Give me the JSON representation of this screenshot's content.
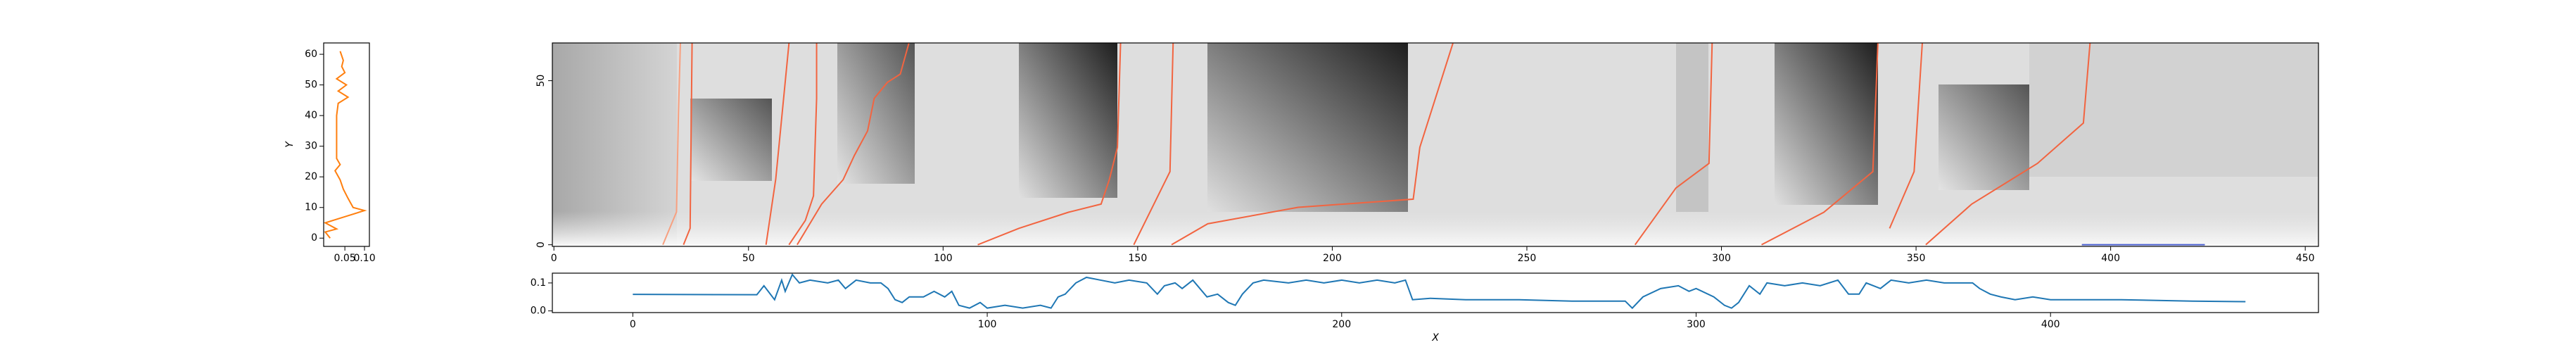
{
  "chart_data": [
    {
      "type": "line",
      "value_axis": "x",
      "ylabel": "Y",
      "xlim": [
        -0.004,
        0.1125
      ],
      "ylim": [
        -2.7,
        63.7
      ],
      "xticks": [
        0.05,
        {
          "value": 0.1,
          "label": "0.10"
        }
      ],
      "yticks": [
        0,
        10,
        20,
        30,
        40,
        50,
        60
      ],
      "series": [
        {
          "color": "#ff7f0e",
          "x": [
            0.0125,
            0,
            0.029,
            0,
            0.05,
            0.1,
            0.071,
            0.058,
            0.046,
            0.038,
            0.025,
            0.038,
            0.029,
            0.029,
            0.029,
            0.029,
            0.033,
            0.058,
            0.033,
            0.054,
            0.029,
            0.05,
            0.042,
            0.046,
            0.038
          ],
          "y": [
            0,
            2,
            3,
            5,
            7,
            9,
            10,
            13,
            16,
            19,
            22,
            24,
            26,
            30,
            35,
            40,
            44,
            46,
            48,
            50,
            52,
            54,
            56,
            58,
            61
          ]
        }
      ]
    },
    {
      "type": "line",
      "value_axis": "y",
      "xlim": [
        -0.4,
        453.4
      ],
      "ylim": [
        -0.5,
        61.5
      ],
      "xticks": [
        0,
        50,
        100,
        150,
        200,
        250,
        300,
        350,
        400,
        450
      ],
      "yticks": [
        0,
        50
      ],
      "series": [
        {
          "color": "#f26440",
          "x": [
            33.3,
            35,
            35.5
          ],
          "y": [
            0,
            5,
            61.4
          ]
        },
        {
          "color": "#f7a080",
          "x": [
            28,
            31.5,
            32,
            32.5
          ],
          "y": [
            0,
            10,
            40,
            61.4
          ]
        },
        {
          "color": "#f26440",
          "x": [
            54.5,
            57,
            60.4
          ],
          "y": [
            0,
            20,
            61.4
          ]
        },
        {
          "color": "#f26440",
          "x": [
            60.4,
            64.6,
            66.7,
            67.5,
            67.5
          ],
          "y": [
            0,
            7.4,
            14.9,
            44.6,
            61.4
          ]
        },
        {
          "color": "#f26440",
          "x": [
            62.5,
            68.8,
            74.3,
            77.2,
            80.6,
            82.3,
            85.7,
            89,
            91.2
          ],
          "y": [
            0,
            12.4,
            19.8,
            27.2,
            34.7,
            44.6,
            49.5,
            52,
            61.4
          ]
        },
        {
          "color": "#f26440",
          "x": [
            108.9,
            119.5,
            132.2,
            140.6,
            142.7,
            144.8,
            145.6
          ],
          "y": [
            0,
            5,
            9.9,
            12.4,
            19.8,
            29.7,
            61.4
          ]
        },
        {
          "color": "#f26440",
          "x": [
            149,
            158.3,
            159.1
          ],
          "y": [
            0,
            22.3,
            61.4
          ]
        },
        {
          "color": "#f26440",
          "x": [
            158.7,
            168,
            191.2,
            220.8,
            222.5,
            231
          ],
          "y": [
            0,
            6.4,
            11.4,
            13.9,
            29.7,
            61.4
          ]
        },
        {
          "color": "#f26440",
          "x": [
            277.8,
            288.3,
            296.8,
            297.6
          ],
          "y": [
            0,
            17.3,
            24.8,
            61.4
          ]
        },
        {
          "color": "#f26440",
          "x": [
            310.3,
            326.3,
            338.9,
            340.2
          ],
          "y": [
            0,
            9.9,
            22.3,
            61.4
          ]
        },
        {
          "color": "#f26440",
          "x": [
            343.2,
            349.5,
            351.6
          ],
          "y": [
            5,
            22.3,
            61.4
          ]
        },
        {
          "color": "#f26440",
          "x": [
            352.5,
            364.3,
            381.2,
            393,
            394.7
          ],
          "y": [
            0,
            12.4,
            24.8,
            37.1,
            61.4
          ]
        },
        {
          "color": "#4a5fd0",
          "x": [
            392.6,
            424.2
          ],
          "y": [
            0,
            0
          ]
        }
      ]
    },
    {
      "type": "line",
      "value_axis": "y",
      "xlabel": "X",
      "xlim": [
        -22.7,
        475.6
      ],
      "ylim": [
        -0.006,
        0.135
      ],
      "xticks": [
        0,
        100,
        200,
        300,
        400
      ],
      "yticks": [
        {
          "value": 0,
          "label": "0.0"
        },
        0.1
      ],
      "series": [
        {
          "color": "#1f77b4",
          "x": [
            0,
            35,
            37,
            40,
            42,
            43,
            45,
            47,
            50,
            55,
            58,
            60,
            63,
            67,
            70,
            72,
            74,
            76,
            78,
            82,
            85,
            88,
            90,
            92,
            95,
            98,
            100,
            105,
            110,
            115,
            118,
            120,
            122,
            125,
            128,
            132,
            136,
            140,
            145,
            148,
            150,
            153,
            155,
            158,
            162,
            165,
            168,
            170,
            172,
            175,
            178,
            185,
            190,
            195,
            200,
            205,
            210,
            215,
            218,
            220,
            225,
            235,
            250,
            265,
            280,
            282,
            285,
            290,
            295,
            298,
            300,
            305,
            308,
            310,
            312,
            315,
            318,
            320,
            325,
            330,
            335,
            340,
            343,
            346,
            348,
            352,
            355,
            360,
            365,
            370,
            378,
            380,
            383,
            386,
            390,
            395,
            400,
            420,
            440,
            455
          ],
          "y": [
            0.059,
            0.058,
            0.09,
            0.04,
            0.11,
            0.07,
            0.13,
            0.1,
            0.11,
            0.1,
            0.11,
            0.08,
            0.11,
            0.1,
            0.1,
            0.08,
            0.04,
            0.03,
            0.05,
            0.05,
            0.07,
            0.05,
            0.07,
            0.02,
            0.01,
            0.03,
            0.01,
            0.02,
            0.01,
            0.02,
            0.01,
            0.05,
            0.06,
            0.1,
            0.12,
            0.11,
            0.1,
            0.11,
            0.1,
            0.06,
            0.09,
            0.1,
            0.08,
            0.11,
            0.05,
            0.06,
            0.03,
            0.02,
            0.06,
            0.1,
            0.11,
            0.1,
            0.11,
            0.1,
            0.11,
            0.1,
            0.11,
            0.1,
            0.11,
            0.04,
            0.045,
            0.04,
            0.04,
            0.035,
            0.035,
            0.01,
            0.05,
            0.08,
            0.09,
            0.07,
            0.08,
            0.05,
            0.02,
            0.01,
            0.03,
            0.09,
            0.06,
            0.1,
            0.09,
            0.1,
            0.09,
            0.11,
            0.06,
            0.06,
            0.1,
            0.08,
            0.11,
            0.1,
            0.11,
            0.1,
            0.1,
            0.08,
            0.06,
            0.05,
            0.04,
            0.05,
            0.04,
            0.04,
            0.035,
            0.033
          ]
        }
      ]
    }
  ]
}
